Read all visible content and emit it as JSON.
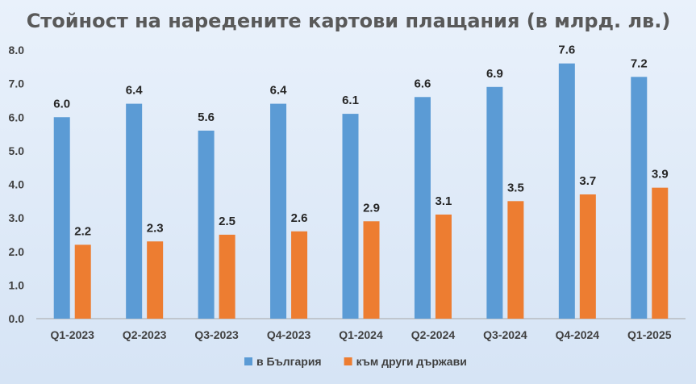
{
  "chart_data": {
    "type": "bar",
    "title": "Стойност на наредените картови плащания (в млрд. лв.)",
    "categories": [
      "Q1-2023",
      "Q2-2023",
      "Q3-2023",
      "Q4-2023",
      "Q1-2024",
      "Q2-2024",
      "Q3-2024",
      "Q4-2024",
      "Q1-2025"
    ],
    "series": [
      {
        "name": "в България",
        "color": "#5b9bd5",
        "values": [
          6.0,
          6.4,
          5.6,
          6.4,
          6.1,
          6.6,
          6.9,
          7.6,
          7.2
        ]
      },
      {
        "name": "към други държави",
        "color": "#ed7d31",
        "values": [
          2.2,
          2.3,
          2.5,
          2.6,
          2.9,
          3.1,
          3.5,
          3.7,
          3.9
        ]
      }
    ],
    "ylim": [
      0,
      8
    ],
    "yticks": [
      0,
      1,
      2,
      3,
      4,
      5,
      6,
      7,
      8
    ],
    "grid": false,
    "legend": "bottom",
    "xlabel": "",
    "ylabel": ""
  }
}
